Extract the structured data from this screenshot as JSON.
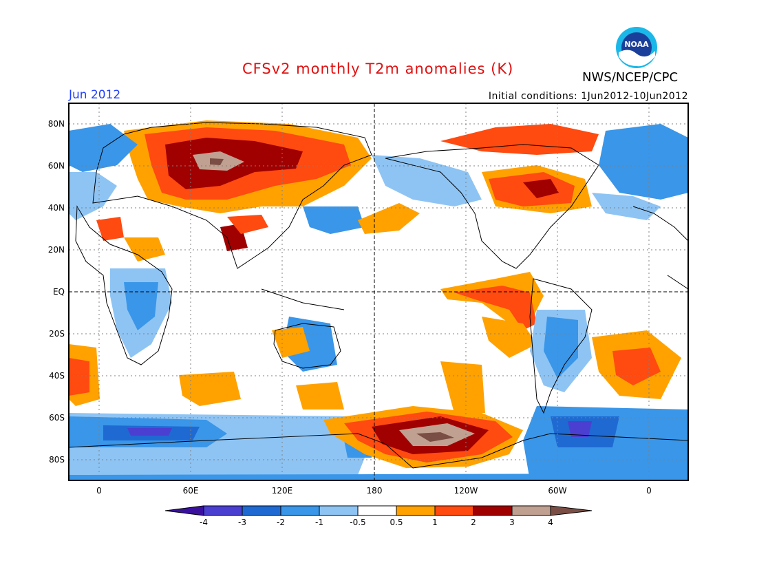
{
  "header": {
    "title": "CFSv2 monthly T2m anomalies (K)",
    "agency": "NWS/NCEP/CPC",
    "month": "Jun 2012",
    "initial_conditions": "Initial conditions: 1Jun2012-10Jun2012",
    "logo_text": "NOAA"
  },
  "map": {
    "lat_labels": [
      "80N",
      "60N",
      "40N",
      "20N",
      "EQ",
      "20S",
      "40S",
      "60S",
      "80S"
    ],
    "lon_labels": [
      "0",
      "60E",
      "120E",
      "180",
      "120W",
      "60W",
      "0"
    ],
    "projection": "cylindrical equidistant, 20W to 20E via 180",
    "grid": "dotted 20° lat x 30° lon, dashed equator and 180 meridian"
  },
  "colorbar": {
    "labels": [
      "-4",
      "-3",
      "-2",
      "-1",
      "-0.5",
      "0.5",
      "1",
      "2",
      "3",
      "4"
    ],
    "colors": [
      "#3a10a0",
      "#4a3fd0",
      "#1e6ad2",
      "#3a96e8",
      "#8ec4f4",
      "#ffffff",
      "#ffa200",
      "#ff4a10",
      "#a00000",
      "#c0a090",
      "#7a4e44"
    ]
  },
  "colors": {
    "title": "#e01010",
    "month": "#1f3fff"
  }
}
